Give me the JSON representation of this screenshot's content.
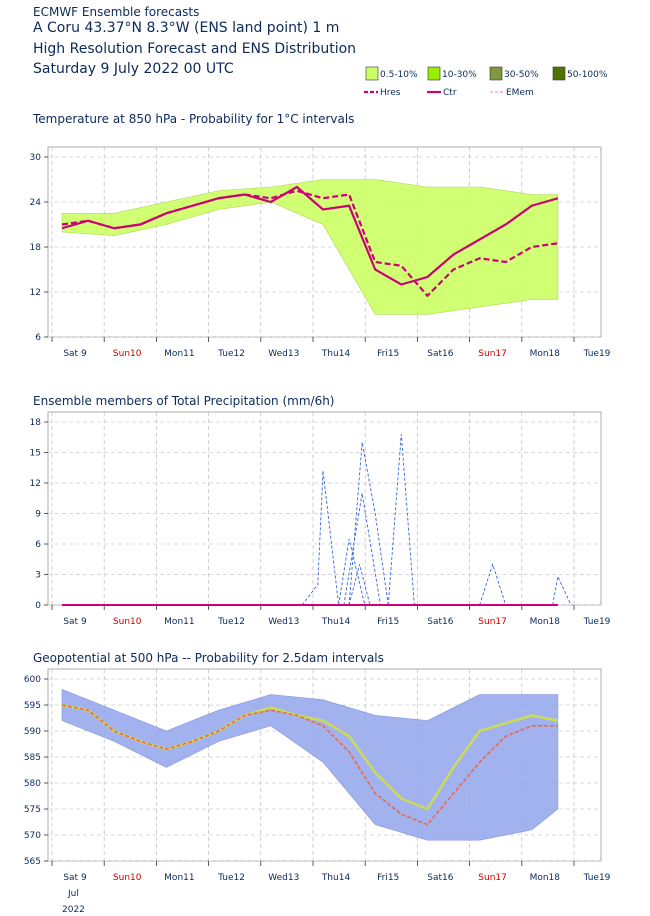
{
  "header": {
    "line1": "ECMWF Ensemble forecasts",
    "line2": "A Coru\u001f 43.37°N 8.3°W (ENS land point) 1 m",
    "line3": "High Resolution Forecast and ENS Distribution",
    "line4": "Saturday  9 July 2022 00 UTC"
  },
  "legend": {
    "bins": [
      {
        "label": "0.5-10%",
        "color": "#ccff66"
      },
      {
        "label": "10-30%",
        "color": "#99ee00"
      },
      {
        "label": "30-50%",
        "color": "#7f9940"
      },
      {
        "label": "50-100%",
        "color": "#4f7300"
      }
    ],
    "lines": [
      {
        "label": "Hres",
        "color": "#cc0077",
        "style": "dashed"
      },
      {
        "label": "Ctr",
        "color": "#cc0077",
        "style": "solid"
      },
      {
        "label": "EMem",
        "color": "#ff77cc",
        "style": "thin-dashed"
      }
    ]
  },
  "x_axis": {
    "ticks": [
      "Sat 9",
      "Sun10",
      "Mon11",
      "Tue12",
      "Wed13",
      "Thu14",
      "Fri15",
      "Sat16",
      "Sun17",
      "Mon18",
      "Tue19"
    ],
    "sunday_color": "#cc0000",
    "bottom_month": "Jul",
    "bottom_year": "2022"
  },
  "chart_data": [
    {
      "type": "line",
      "title": "Temperature at 850 hPa - Probability for 1°C intervals",
      "ylim": [
        6,
        30
      ],
      "yticks": [
        6,
        12,
        18,
        24,
        30
      ],
      "xlim_days": [
        0,
        10
      ],
      "series": [
        {
          "name": "Hres",
          "x": [
            0,
            0.5,
            1,
            1.5,
            2,
            2.5,
            3,
            3.5,
            4,
            4.5,
            5,
            5.5,
            6,
            6.5,
            7,
            7.5,
            8,
            8.5,
            9,
            9.5
          ],
          "values": [
            21,
            21.5,
            20.5,
            21,
            22.5,
            23.5,
            24.5,
            25,
            24.5,
            25.5,
            24.5,
            25,
            16,
            15.5,
            11.5,
            15,
            16.5,
            16,
            18,
            18.5
          ]
        },
        {
          "name": "Ctr",
          "x": [
            0,
            0.5,
            1,
            1.5,
            2,
            2.5,
            3,
            3.5,
            4,
            4.5,
            5,
            5.5,
            6,
            6.5,
            7,
            7.5,
            8,
            8.5,
            9,
            9.5
          ],
          "values": [
            20.5,
            21.5,
            20.5,
            21,
            22.5,
            23.5,
            24.5,
            25,
            24,
            26,
            23,
            23.5,
            15,
            13,
            14,
            17,
            19,
            21,
            23.5,
            24.5
          ]
        }
      ],
      "band": {
        "x": [
          0,
          1,
          2,
          3,
          4,
          5,
          6,
          7,
          8,
          9,
          9.5
        ],
        "low": [
          20,
          19.5,
          21,
          23,
          24,
          21,
          9,
          9,
          10,
          11,
          11
        ],
        "high": [
          22.5,
          22.5,
          24,
          25.5,
          26,
          27,
          27,
          26,
          26,
          25,
          25
        ]
      }
    },
    {
      "type": "line",
      "title": "Ensemble members of Total Precipitation (mm/6h)",
      "ylim": [
        0,
        18
      ],
      "yticks": [
        0,
        3,
        6,
        9,
        12,
        15,
        18
      ],
      "xlim_days": [
        0,
        10
      ],
      "series": [
        {
          "name": "",
          "x": [
            4.6,
            4.9,
            5.0,
            5.3
          ],
          "values": [
            0,
            2,
            13.2,
            0
          ]
        },
        {
          "name": "",
          "x": [
            5.5,
            5.75,
            6.0,
            6.25
          ],
          "values": [
            0,
            16,
            9,
            0
          ]
        },
        {
          "name": "",
          "x": [
            6.25,
            6.5,
            6.75
          ],
          "values": [
            0,
            16.8,
            0
          ]
        },
        {
          "name": "",
          "x": [
            5.4,
            5.75,
            6.1
          ],
          "values": [
            0,
            11,
            0
          ]
        },
        {
          "name": "",
          "x": [
            5.3,
            5.5,
            5.8
          ],
          "values": [
            0,
            6.5,
            0
          ]
        },
        {
          "name": "",
          "x": [
            5.5,
            5.7,
            5.9
          ],
          "values": [
            0,
            4,
            0
          ]
        },
        {
          "name": "",
          "x": [
            8.0,
            8.25,
            8.5
          ],
          "values": [
            0,
            4,
            0
          ]
        },
        {
          "name": "",
          "x": [
            9.4,
            9.5,
            9.75
          ],
          "values": [
            0,
            2.8,
            0
          ]
        }
      ]
    },
    {
      "type": "line",
      "title": "Geopotential at 500 hPa -- Probability for 2.5dam intervals",
      "ylim": [
        565,
        600
      ],
      "yticks": [
        565,
        570,
        575,
        580,
        585,
        590,
        595,
        600
      ],
      "xlim_days": [
        0,
        10
      ],
      "series": [
        {
          "name": "",
          "x": [
            0,
            0.5,
            1,
            1.5,
            2,
            2.5,
            3,
            3.5,
            4,
            4.5,
            5,
            5.5,
            6,
            6.5,
            7,
            7.5,
            8,
            8.5,
            9,
            9.5
          ],
          "values": [
            595,
            594,
            590,
            588,
            586.5,
            588,
            590,
            593,
            594.5,
            593,
            592,
            589,
            582,
            577,
            575,
            583,
            590,
            591.5,
            593,
            592
          ]
        },
        {
          "name": "",
          "x": [
            0,
            0.5,
            1,
            1.5,
            2,
            2.5,
            3,
            3.5,
            4,
            4.5,
            5,
            5.5,
            6,
            6.5,
            7,
            7.5,
            8,
            8.5,
            9,
            9.5
          ],
          "values": [
            595,
            594,
            590,
            588,
            586.5,
            588,
            590,
            593,
            594,
            593,
            591,
            586,
            578,
            574,
            572,
            578,
            584,
            589,
            591,
            591
          ]
        }
      ],
      "band": {
        "x": [
          0,
          1,
          2,
          3,
          4,
          5,
          6,
          7,
          8,
          9,
          9.5
        ],
        "low": [
          592,
          588,
          583,
          588,
          591,
          584,
          572,
          569,
          569,
          571,
          575
        ],
        "high": [
          598,
          594,
          590,
          594,
          597,
          596,
          593,
          592,
          597,
          597,
          597
        ]
      }
    }
  ]
}
